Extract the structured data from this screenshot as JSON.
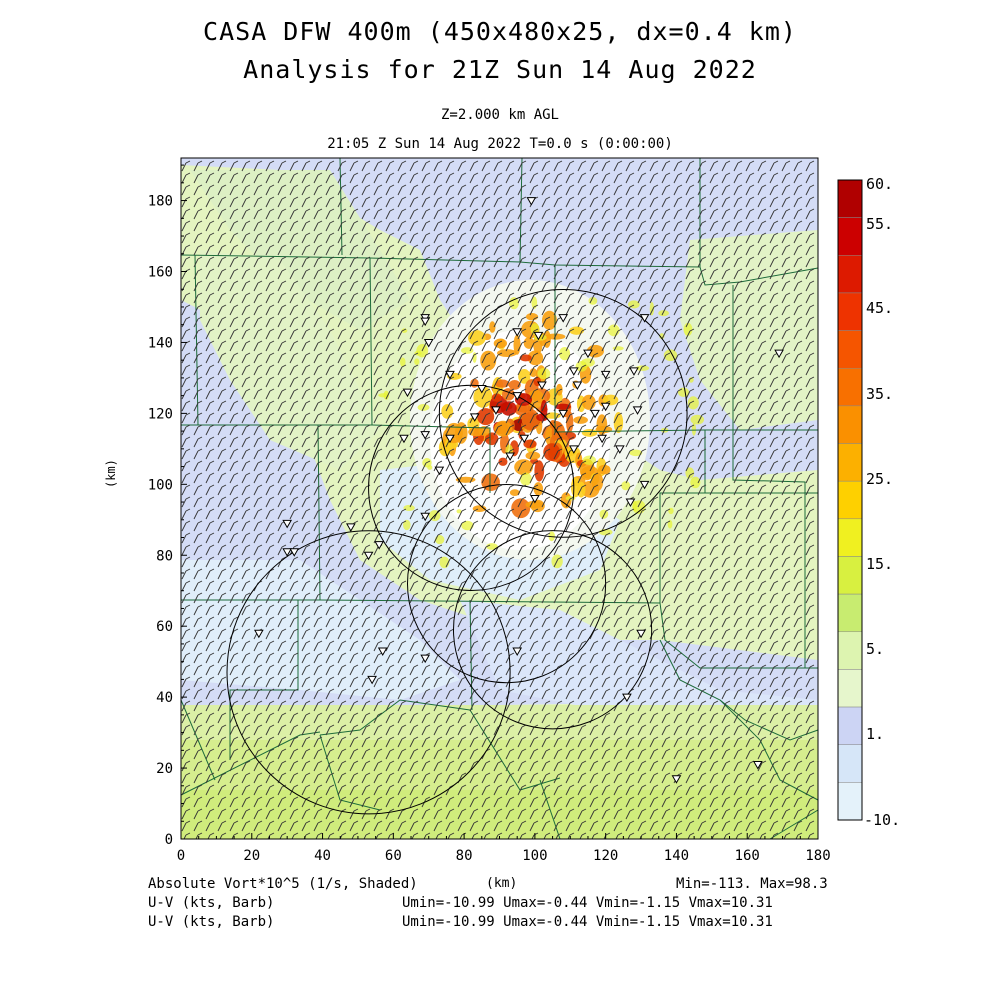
{
  "title_line1": "CASA DFW 400m (450x480x25, dx=0.4 km)",
  "title_line2": "Analysis for 21Z Sun 14 Aug 2022",
  "level_label": "Z=2.000 km AGL",
  "time_label": "21:05 Z Sun 14 Aug 2022    T=0.0 s (0:00:00)",
  "axes": {
    "x_ticks": [
      "0",
      "20",
      "40",
      "60",
      "80",
      "100",
      "120",
      "140",
      "160",
      "180"
    ],
    "y_ticks": [
      "0",
      "20",
      "40",
      "60",
      "80",
      "100",
      "120",
      "140",
      "160",
      "180"
    ],
    "x_label": "(km)",
    "y_label": "(km)",
    "x_range": [
      0,
      180
    ],
    "y_range": [
      0,
      192
    ]
  },
  "colorbar": {
    "labels": [
      "60.",
      "55.",
      "45.",
      "35.",
      "25.",
      "15.",
      "5.",
      "1.",
      "-10."
    ],
    "colors": [
      "#b00000",
      "#cc0000",
      "#dd1a00",
      "#ee3300",
      "#f55500",
      "#f87000",
      "#fa9000",
      "#fcb000",
      "#fed000",
      "#f0f020",
      "#d8f040",
      "#c8ec70",
      "#ddf4b0",
      "#e6f6cc",
      "#ccd4f4",
      "#d6e6f8",
      "#e4f2fa"
    ]
  },
  "footer": {
    "field_label": "Absolute Vort*10^5 (1/s, Shaded)",
    "x_unit": "(km)",
    "minmax": "Min=-113. Max=98.3",
    "uv_label_1": "U-V (kts, Barb)",
    "uv_label_2": "U-V (kts, Barb)",
    "uv_range_1": "Umin=-10.99 Umax=-0.44 Vmin=-1.15 Vmax=10.31",
    "uv_range_2": "Umin=-10.99 Umax=-0.44 Vmin=-1.15 Vmax=10.31"
  },
  "radars": [
    {
      "cx": 108,
      "cy": 120,
      "r": 35
    },
    {
      "cx": 82,
      "cy": 99,
      "r": 29
    },
    {
      "cx": 92,
      "cy": 72,
      "r": 28
    },
    {
      "cx": 105,
      "cy": 59,
      "r": 28
    },
    {
      "cx": 53,
      "cy": 47,
      "r": 40
    }
  ],
  "stations": [
    [
      99,
      180
    ],
    [
      69,
      147
    ],
    [
      69,
      146
    ],
    [
      131,
      147
    ],
    [
      108,
      147
    ],
    [
      70,
      140
    ],
    [
      95,
      143
    ],
    [
      101,
      142
    ],
    [
      169,
      137
    ],
    [
      115,
      137
    ],
    [
      111,
      132
    ],
    [
      128,
      132
    ],
    [
      76,
      131
    ],
    [
      120,
      131
    ],
    [
      112,
      128
    ],
    [
      102,
      128
    ],
    [
      64,
      126
    ],
    [
      95,
      125
    ],
    [
      85,
      127
    ],
    [
      89,
      121
    ],
    [
      108,
      120
    ],
    [
      83,
      119
    ],
    [
      120,
      122
    ],
    [
      117,
      120
    ],
    [
      129,
      121
    ],
    [
      63,
      113
    ],
    [
      76,
      113
    ],
    [
      69,
      114
    ],
    [
      119,
      113
    ],
    [
      97,
      113
    ],
    [
      124,
      110
    ],
    [
      111,
      110
    ],
    [
      93,
      108
    ],
    [
      73,
      104
    ],
    [
      131,
      100
    ],
    [
      100,
      96
    ],
    [
      127,
      95
    ],
    [
      69,
      91
    ],
    [
      30,
      89
    ],
    [
      48,
      88
    ],
    [
      56,
      83
    ],
    [
      30,
      81
    ],
    [
      32,
      81
    ],
    [
      53,
      80
    ],
    [
      22,
      58
    ],
    [
      57,
      53
    ],
    [
      69,
      51
    ],
    [
      95,
      53
    ],
    [
      130,
      58
    ],
    [
      126,
      40
    ],
    [
      54,
      45
    ],
    [
      140,
      17
    ],
    [
      163,
      21
    ]
  ],
  "watermark_tags": []
}
